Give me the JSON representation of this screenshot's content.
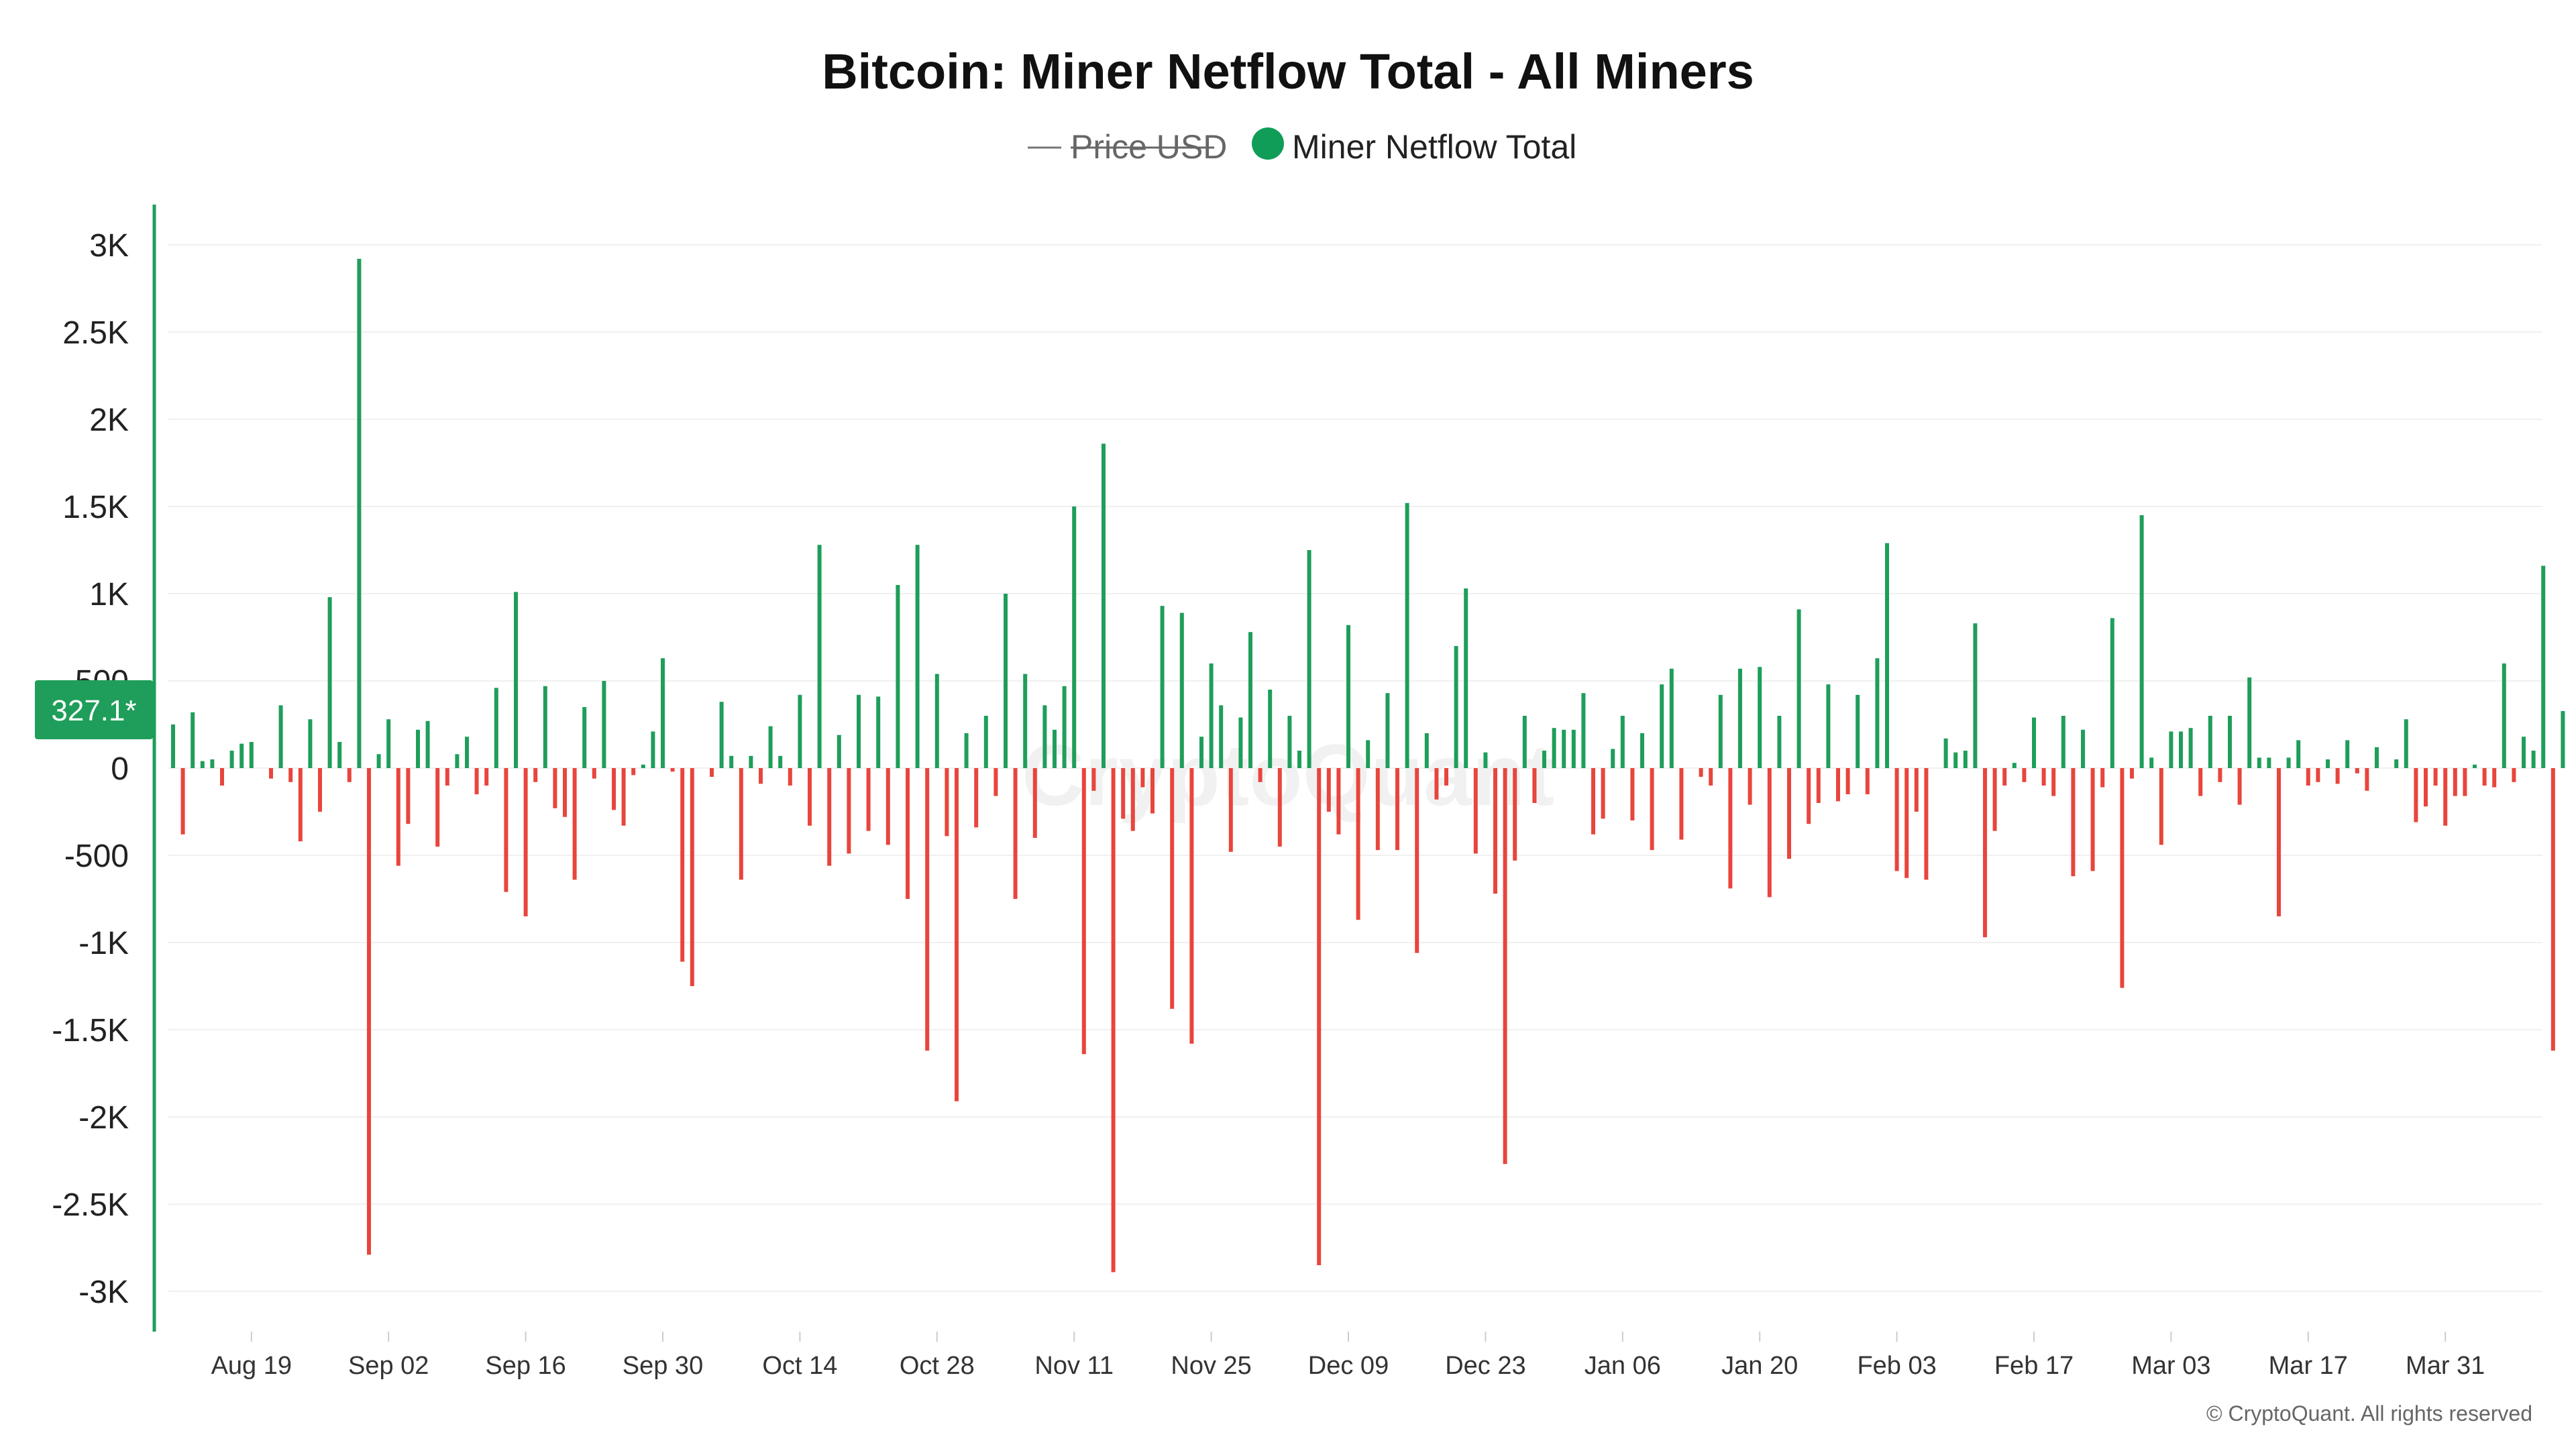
{
  "chart_data": {
    "type": "bar",
    "title": "Bitcoin: Miner Netflow Total - All Miners",
    "legend": [
      {
        "name": "Price USD",
        "hidden": true,
        "color": "#777777"
      },
      {
        "name": "Miner Netflow Total",
        "hidden": false,
        "color": "#0f9d58"
      }
    ],
    "positive_color": "#1e9e5a",
    "negative_color": "#e8453c",
    "axis_color": "#1e9e5a",
    "ylim": [
      -3100,
      3100
    ],
    "yticks": [
      {
        "value": 3000,
        "label": "3K"
      },
      {
        "value": 2500,
        "label": "2.5K"
      },
      {
        "value": 2000,
        "label": "2K"
      },
      {
        "value": 1500,
        "label": "1.5K"
      },
      {
        "value": 1000,
        "label": "1K"
      },
      {
        "value": 500,
        "label": "500"
      },
      {
        "value": 0,
        "label": "0"
      },
      {
        "value": -500,
        "label": "-500"
      },
      {
        "value": -1000,
        "label": "-1K"
      },
      {
        "value": -1500,
        "label": "-1.5K"
      },
      {
        "value": -2000,
        "label": "-2K"
      },
      {
        "value": -2500,
        "label": "-2.5K"
      },
      {
        "value": -3000,
        "label": "-3K"
      }
    ],
    "xticks": [
      {
        "day": 8,
        "label": "Aug 19"
      },
      {
        "day": 22,
        "label": "Sep 02"
      },
      {
        "day": 36,
        "label": "Sep 16"
      },
      {
        "day": 50,
        "label": "Sep 30"
      },
      {
        "day": 64,
        "label": "Oct 14"
      },
      {
        "day": 78,
        "label": "Oct 28"
      },
      {
        "day": 92,
        "label": "Nov 11"
      },
      {
        "day": 106,
        "label": "Nov 25"
      },
      {
        "day": 120,
        "label": "Dec 09"
      },
      {
        "day": 134,
        "label": "Dec 23"
      },
      {
        "day": 148,
        "label": "Jan 06"
      },
      {
        "day": 162,
        "label": "Jan 20"
      },
      {
        "day": 176,
        "label": "Feb 03"
      },
      {
        "day": 190,
        "label": "Feb 17"
      },
      {
        "day": 204,
        "label": "Mar 03"
      },
      {
        "day": 218,
        "label": "Mar 17"
      },
      {
        "day": 232,
        "label": "Mar 31"
      }
    ],
    "current_value_label": "327.1*",
    "values": [
      250,
      -380,
      320,
      40,
      50,
      -100,
      100,
      140,
      150,
      0,
      -60,
      360,
      -80,
      -420,
      280,
      -250,
      980,
      150,
      -80,
      2920,
      -2790,
      80,
      280,
      -560,
      -320,
      220,
      270,
      -450,
      -100,
      80,
      180,
      -150,
      -100,
      460,
      -710,
      1010,
      -850,
      -80,
      470,
      -230,
      -280,
      -640,
      350,
      -60,
      500,
      -240,
      -330,
      -40,
      20,
      210,
      630,
      -20,
      -1110,
      -1250,
      0,
      -50,
      380,
      70,
      -640,
      70,
      -90,
      240,
      70,
      -100,
      420,
      -330,
      1280,
      -560,
      190,
      -490,
      420,
      -360,
      410,
      -440,
      1050,
      -750,
      1280,
      -1620,
      540,
      -390,
      -1910,
      200,
      -340,
      300,
      -160,
      1000,
      -750,
      540,
      -400,
      360,
      220,
      470,
      1500,
      -1640,
      -130,
      1860,
      -2890,
      -290,
      -360,
      -110,
      -260,
      930,
      -1380,
      890,
      -1580,
      180,
      600,
      360,
      -480,
      290,
      780,
      -80,
      450,
      -450,
      300,
      100,
      1250,
      -2850,
      -250,
      -380,
      820,
      -870,
      160,
      -470,
      430,
      -470,
      1520,
      -1060,
      200,
      -180,
      -100,
      700,
      1030,
      -490,
      90,
      -720,
      -2270,
      -530,
      300,
      -200,
      100,
      230,
      220,
      220,
      430,
      -380,
      -290,
      110,
      300,
      -300,
      200,
      -470,
      480,
      570,
      -410,
      0,
      -50,
      -100,
      420,
      -690,
      570,
      -210,
      580,
      -740,
      300,
      -520,
      910,
      -320,
      -200,
      480,
      -190,
      -150,
      420,
      -150,
      630,
      1290,
      -590,
      -630,
      -250,
      -640,
      0,
      170,
      90,
      100,
      830,
      -970,
      -360,
      -100,
      30,
      -80,
      290,
      -100,
      -160,
      300,
      -620,
      220,
      -590,
      -110,
      860,
      -1260,
      -60,
      1450,
      60,
      -440,
      210,
      210,
      230,
      -160,
      300,
      -80,
      300,
      -210,
      520,
      60,
      60,
      -850,
      60,
      160,
      -100,
      -80,
      50,
      -90,
      160,
      -30,
      -130,
      120,
      0,
      50,
      280,
      -310,
      -220,
      -100,
      -330,
      -160,
      -160,
      20,
      -100,
      -110,
      600,
      -80,
      180,
      100,
      1160,
      -1620,
      327.1
    ]
  },
  "watermark": "CryptoQuant",
  "copyright": "© CryptoQuant. All rights reserved"
}
